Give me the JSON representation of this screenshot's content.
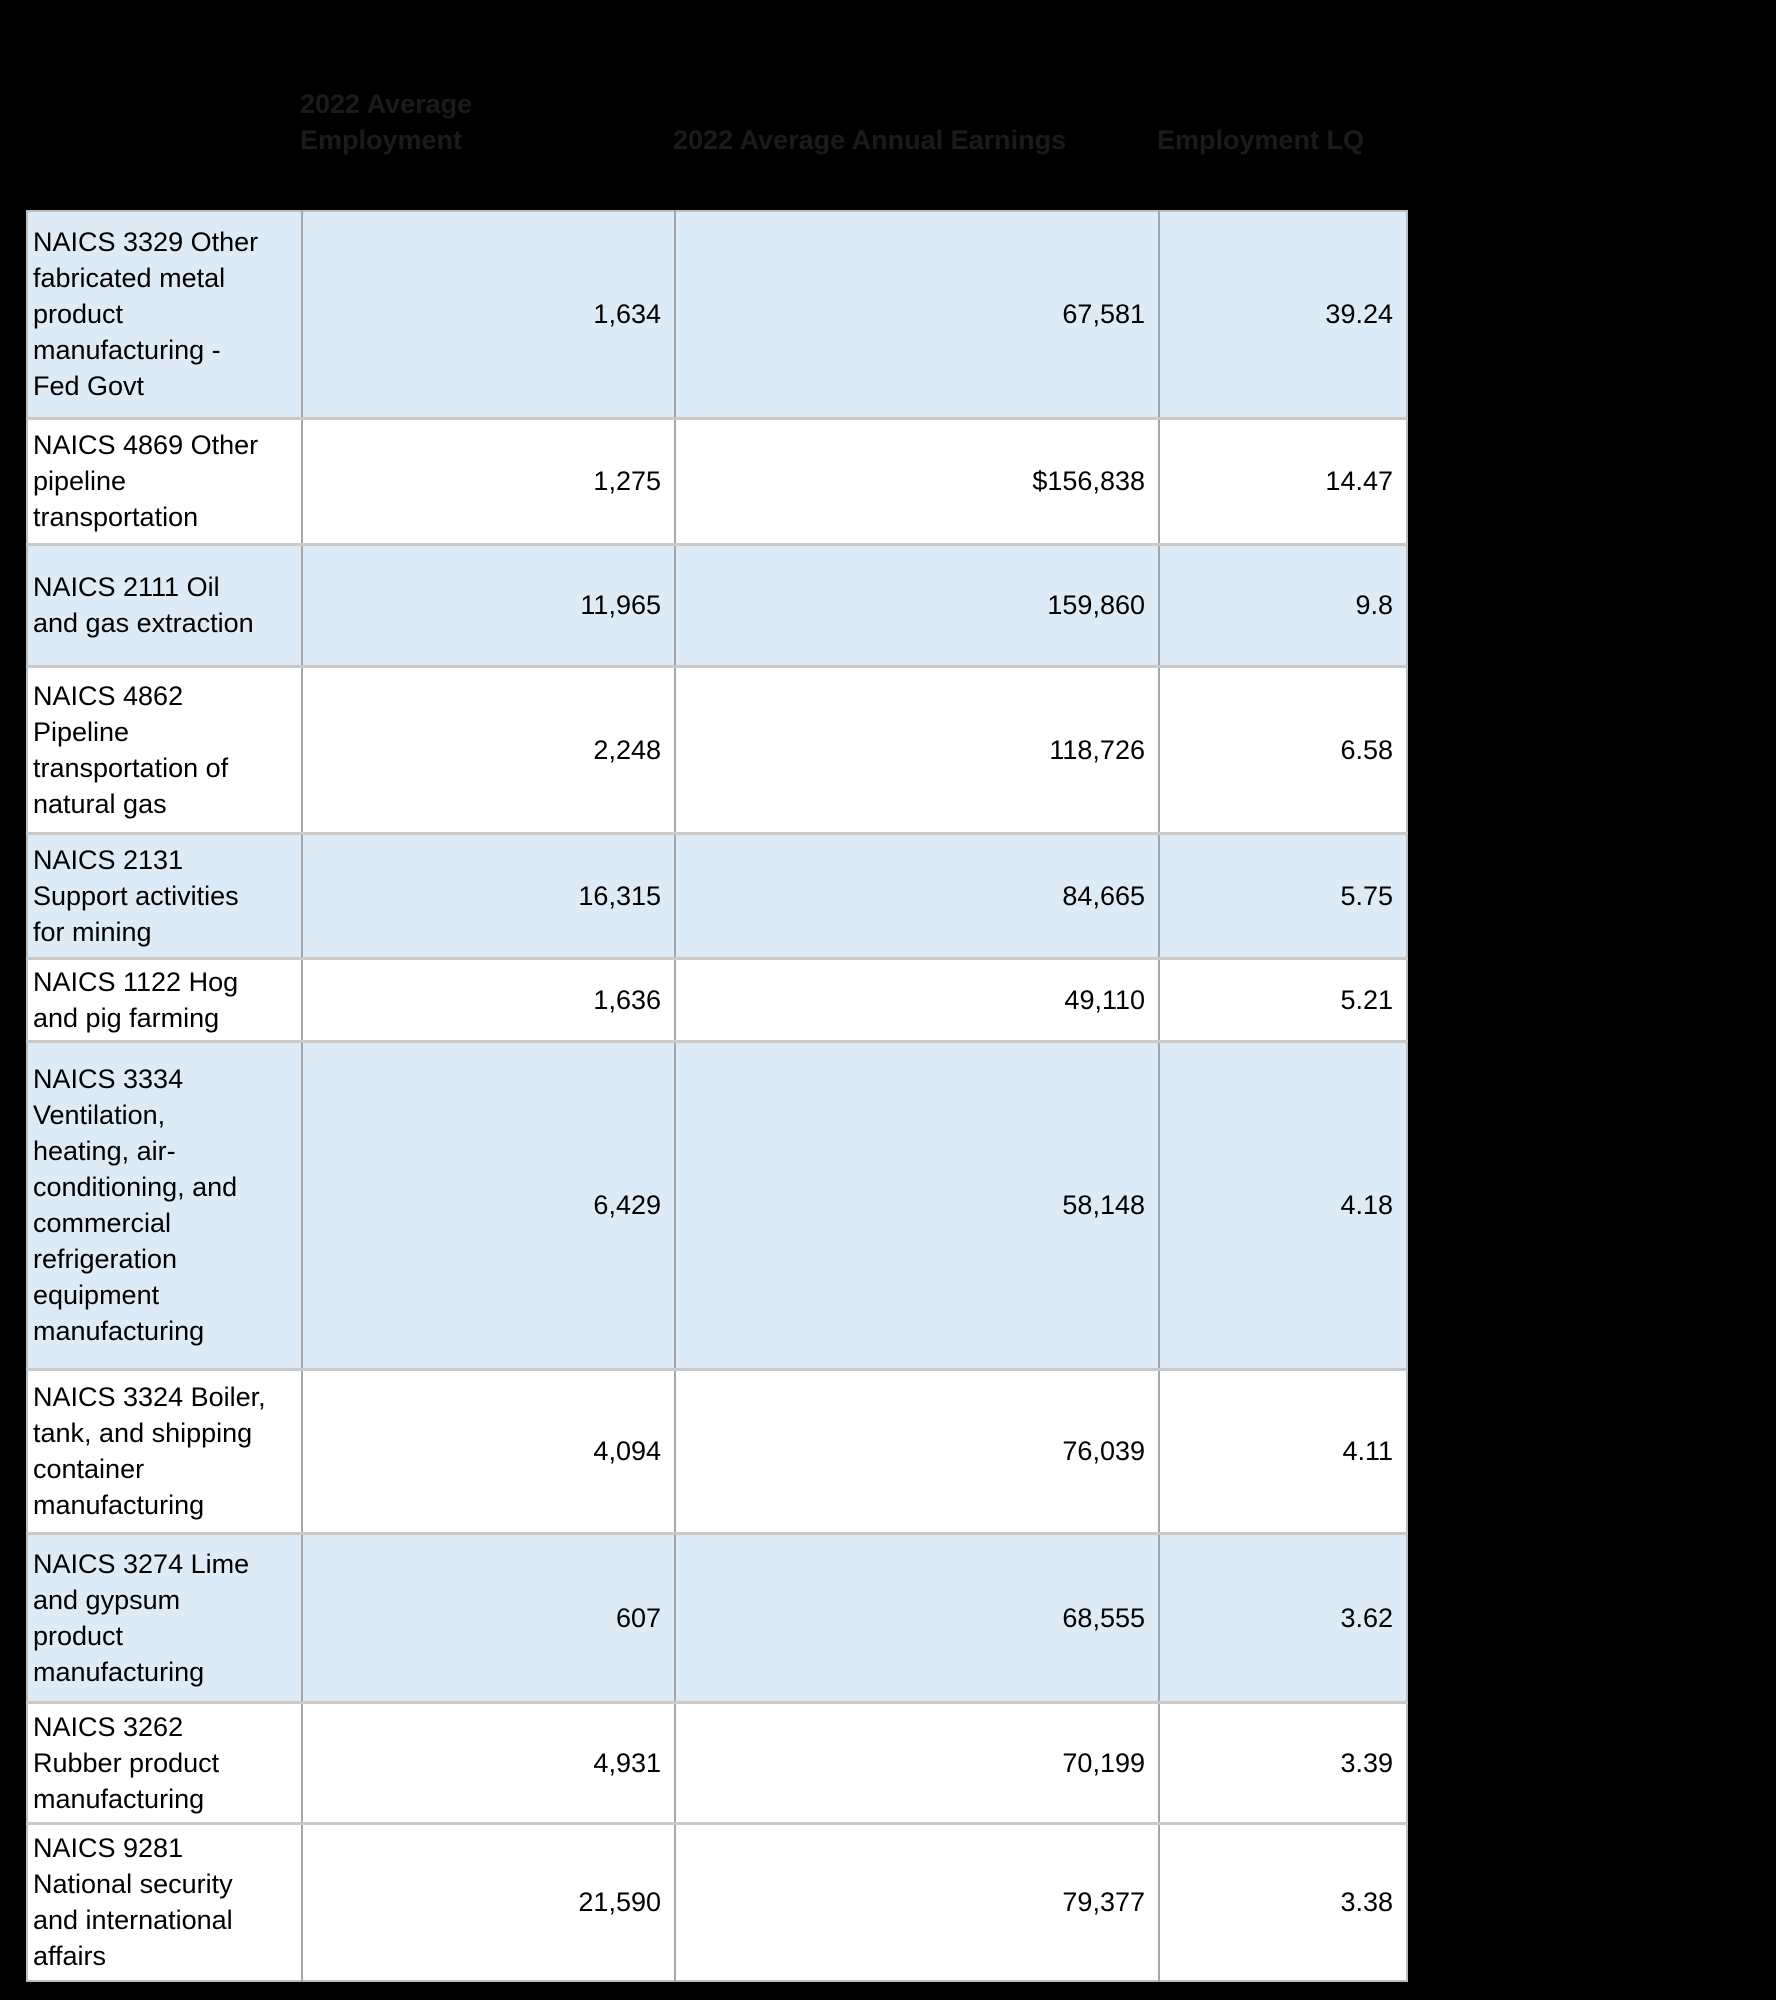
{
  "columns": {
    "employment": "2022 Average Employment",
    "earnings": "2022 Average Annual Earnings",
    "lq": "Employment LQ"
  },
  "rows": [
    {
      "industry": "NAICS 3329 Other\nfabricated metal\nproduct\nmanufacturing -\nFed Govt",
      "employment": "1,634",
      "earnings": "67,581",
      "lq": "39.24",
      "shaded": true
    },
    {
      "industry": "NAICS 4869 Other\npipeline\ntransportation",
      "employment": "1,275",
      "earnings": "$156,838",
      "lq": "14.47",
      "shaded": false
    },
    {
      "industry": "NAICS 2111 Oil\nand gas extraction",
      "employment": "11,965",
      "earnings": "159,860",
      "lq": "9.8",
      "shaded": true
    },
    {
      "industry": "NAICS 4862\nPipeline\ntransportation of\nnatural gas",
      "employment": "2,248",
      "earnings": "118,726",
      "lq": "6.58",
      "shaded": false
    },
    {
      "industry": "NAICS 2131\nSupport activities\nfor mining",
      "employment": "16,315",
      "earnings": "84,665",
      "lq": "5.75",
      "shaded": true
    },
    {
      "industry": "NAICS 1122 Hog\nand pig farming",
      "employment": "1,636",
      "earnings": "49,110",
      "lq": "5.21",
      "shaded": false
    },
    {
      "industry": "NAICS 3334\nVentilation,\nheating, air-\nconditioning, and\ncommercial\nrefrigeration\nequipment\nmanufacturing",
      "employment": "6,429",
      "earnings": "58,148",
      "lq": "4.18",
      "shaded": true
    },
    {
      "industry": "NAICS 3324 Boiler,\ntank, and shipping\ncontainer\nmanufacturing",
      "employment": "4,094",
      "earnings": "76,039",
      "lq": "4.11",
      "shaded": false
    },
    {
      "industry": "NAICS 3274 Lime\nand gypsum\nproduct\nmanufacturing",
      "employment": "607",
      "earnings": "68,555",
      "lq": "3.62",
      "shaded": true
    },
    {
      "industry": "NAICS 3262\nRubber product\nmanufacturing",
      "employment": "4,931",
      "earnings": "70,199",
      "lq": "3.39",
      "shaded": false
    },
    {
      "industry": "NAICS 9281\nNational security\nand international\naffairs",
      "employment": "21,590",
      "earnings": "79,377",
      "lq": "3.38",
      "shaded": false
    }
  ],
  "colors": {
    "canvas_background": "#000000",
    "header_text": "#1b1b1b",
    "banded_row_fill": "#DDEBF7",
    "plain_row_fill": "#FFFFFF",
    "grid_line_vertical": "#a6a6a6",
    "grid_line_horizontal": "#c9c9c9",
    "cell_text": "#000000"
  }
}
